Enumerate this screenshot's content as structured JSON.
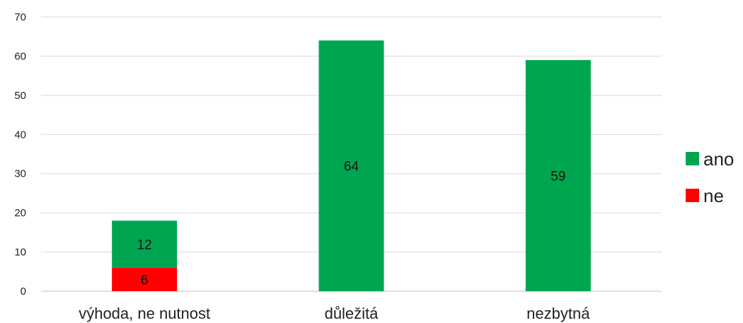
{
  "chart_data": {
    "type": "bar",
    "stacked": true,
    "categories": [
      "výhoda, ne nutnost",
      "důležitá",
      "nezbytná"
    ],
    "series": [
      {
        "name": "ne",
        "values": [
          6,
          0,
          0
        ],
        "color": "#ff0000"
      },
      {
        "name": "ano",
        "values": [
          12,
          64,
          59
        ],
        "color": "#00a550"
      }
    ],
    "data_labels": [
      {
        "series": "ne",
        "values": [
          "6",
          "",
          ""
        ]
      },
      {
        "series": "ano",
        "values": [
          "12",
          "64",
          "59"
        ]
      }
    ],
    "yticks": [
      "0",
      "10",
      "20",
      "30",
      "40",
      "50",
      "60",
      "70"
    ],
    "ylim": [
      0,
      70
    ],
    "grid": true,
    "legend_position": "right",
    "legend": [
      {
        "label": "ano",
        "color": "#00a550"
      },
      {
        "label": "ne",
        "color": "#ff0000"
      }
    ],
    "title": "",
    "xlabel": "",
    "ylabel": ""
  }
}
